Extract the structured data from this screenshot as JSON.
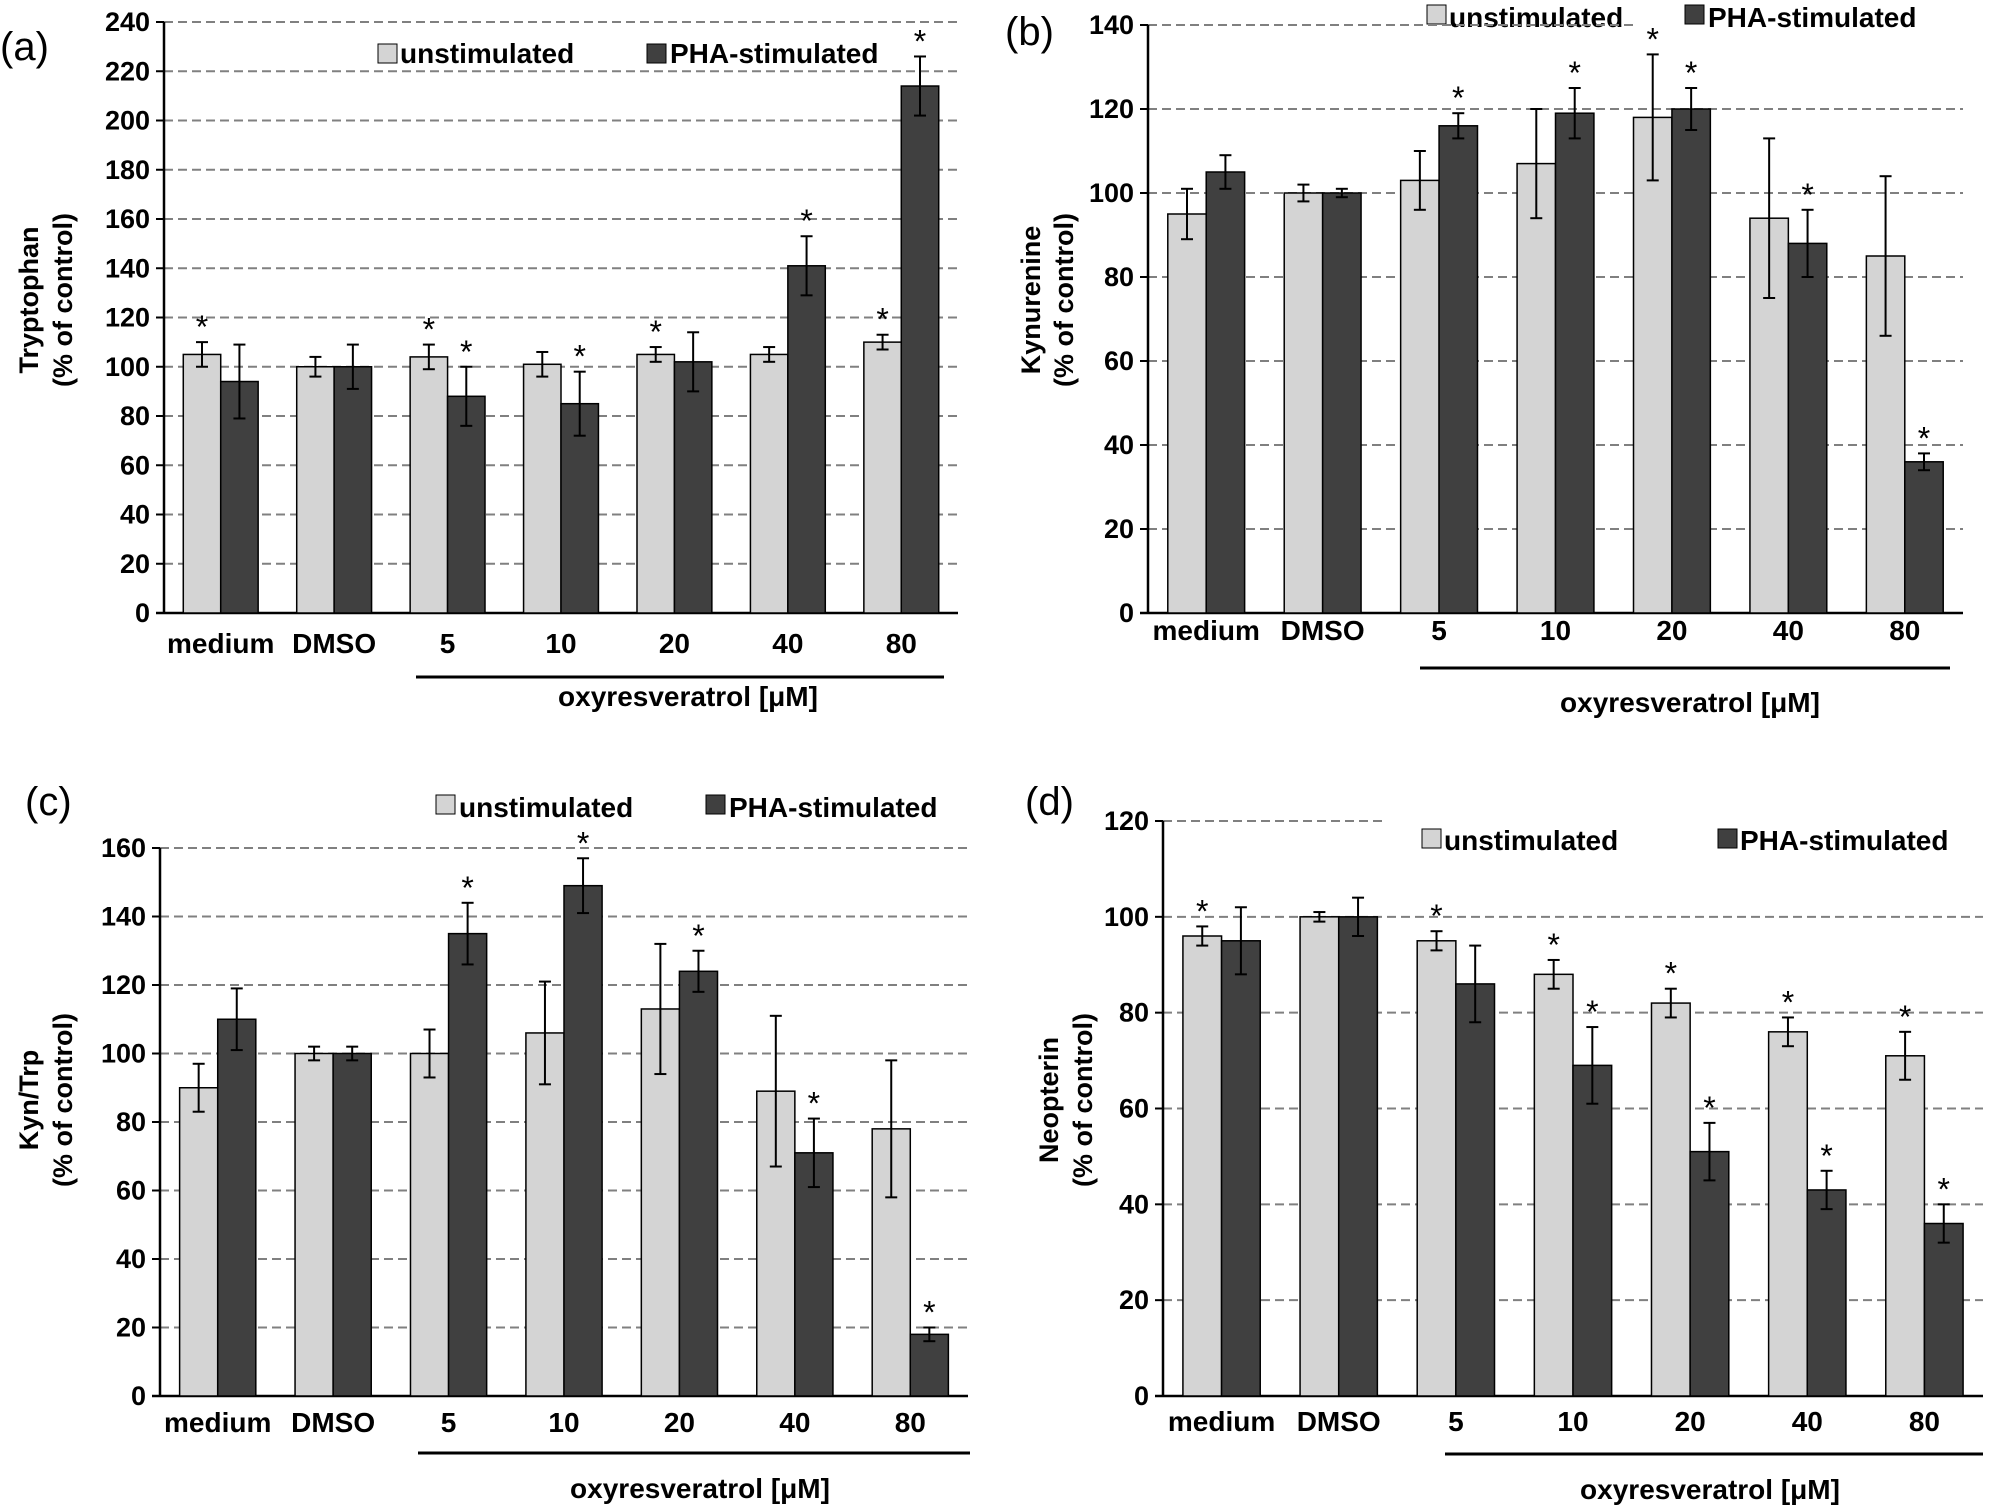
{
  "colors": {
    "unstimulated": "#d4d4d4",
    "stimulated": "#404040",
    "stroke": "#000000",
    "grid": "#808080"
  },
  "chart_data": [
    {
      "type": "bar",
      "panel_label": "(a)",
      "ylabel_line1": "Tryptophan",
      "ylabel_line2": "(% of control)",
      "ylim": [
        0,
        240
      ],
      "ytick_step": 20,
      "yticks": [
        "0",
        "20",
        "40",
        "60",
        "80",
        "100",
        "120",
        "140",
        "160",
        "180",
        "200",
        "220",
        "240"
      ],
      "categories": [
        "medium",
        "DMSO",
        "5",
        "10",
        "20",
        "40",
        "80"
      ],
      "group_label": "oxyresveratrol  [μM]",
      "legend": [
        "unstimulated",
        "PHA-stimulated"
      ],
      "series": [
        {
          "name": "unstimulated",
          "values": [
            105,
            100,
            104,
            101,
            105,
            105,
            110
          ],
          "errors": [
            5,
            4,
            5,
            5,
            3,
            3,
            3
          ],
          "sig": [
            true,
            false,
            true,
            false,
            true,
            false,
            true
          ]
        },
        {
          "name": "PHA-stimulated",
          "values": [
            94,
            100,
            88,
            85,
            102,
            141,
            214
          ],
          "errors": [
            15,
            9,
            12,
            13,
            12,
            12,
            12
          ],
          "sig": [
            false,
            false,
            true,
            true,
            false,
            true,
            true
          ]
        }
      ]
    },
    {
      "type": "bar",
      "panel_label": "(b)",
      "ylabel_line1": "Kynurenine",
      "ylabel_line2": "(% of control)",
      "ylim": [
        0,
        140
      ],
      "ytick_step": 20,
      "yticks": [
        "0",
        "20",
        "40",
        "60",
        "80",
        "100",
        "120",
        "140"
      ],
      "categories": [
        "medium",
        "DMSO",
        "5",
        "10",
        "20",
        "40",
        "80"
      ],
      "group_label": "oxyresveratrol  [μM]",
      "legend": [
        "unstimulated",
        "PHA-stimulated"
      ],
      "series": [
        {
          "name": "unstimulated",
          "values": [
            95,
            100,
            103,
            107,
            118,
            94,
            85
          ],
          "errors": [
            6,
            2,
            7,
            13,
            15,
            19,
            19
          ],
          "sig": [
            false,
            false,
            false,
            false,
            true,
            false,
            false
          ]
        },
        {
          "name": "PHA-stimulated",
          "values": [
            105,
            100,
            116,
            119,
            120,
            88,
            36
          ],
          "errors": [
            4,
            1,
            3,
            6,
            5,
            8,
            2
          ],
          "sig": [
            false,
            false,
            true,
            true,
            true,
            true,
            true
          ]
        }
      ]
    },
    {
      "type": "bar",
      "panel_label": "(c)",
      "ylabel_line1": "Kyn/Trp",
      "ylabel_line2": "(% of control)",
      "ylim": [
        0,
        160
      ],
      "ytick_step": 20,
      "yticks": [
        "0",
        "20",
        "40",
        "60",
        "80",
        "100",
        "120",
        "140",
        "160"
      ],
      "categories": [
        "medium",
        "DMSO",
        "5",
        "10",
        "20",
        "40",
        "80"
      ],
      "group_label": "oxyresveratrol   [μM]",
      "legend": [
        "unstimulated",
        "PHA-stimulated"
      ],
      "series": [
        {
          "name": "unstimulated",
          "values": [
            90,
            100,
            100,
            106,
            113,
            89,
            78
          ],
          "errors": [
            7,
            2,
            7,
            15,
            19,
            22,
            20
          ],
          "sig": [
            false,
            false,
            false,
            false,
            false,
            false,
            false
          ]
        },
        {
          "name": "PHA-stimulated",
          "values": [
            110,
            100,
            135,
            149,
            124,
            71,
            18
          ],
          "errors": [
            9,
            2,
            9,
            8,
            6,
            10,
            2
          ],
          "sig": [
            false,
            false,
            true,
            true,
            true,
            true,
            true
          ]
        }
      ]
    },
    {
      "type": "bar",
      "panel_label": "(d)",
      "ylabel_line1": "Neopterin",
      "ylabel_line2": "(% of control)",
      "ylim": [
        0,
        120
      ],
      "ytick_step": 20,
      "yticks": [
        "0",
        "20",
        "40",
        "60",
        "80",
        "100",
        "120"
      ],
      "categories": [
        "medium",
        "DMSO",
        "5",
        "10",
        "20",
        "40",
        "80"
      ],
      "group_label": "oxyresveratrol  [μM]",
      "legend": [
        "unstimulated",
        "PHA-stimulated"
      ],
      "series": [
        {
          "name": "unstimulated",
          "values": [
            96,
            100,
            95,
            88,
            82,
            76,
            71
          ],
          "errors": [
            2,
            1,
            2,
            3,
            3,
            3,
            5
          ],
          "sig": [
            true,
            false,
            true,
            true,
            true,
            true,
            true
          ]
        },
        {
          "name": "PHA-stimulated",
          "values": [
            95,
            100,
            86,
            69,
            51,
            43,
            36
          ],
          "errors": [
            7,
            4,
            8,
            8,
            6,
            4,
            4
          ],
          "sig": [
            false,
            false,
            false,
            true,
            true,
            true,
            true
          ]
        }
      ]
    }
  ]
}
